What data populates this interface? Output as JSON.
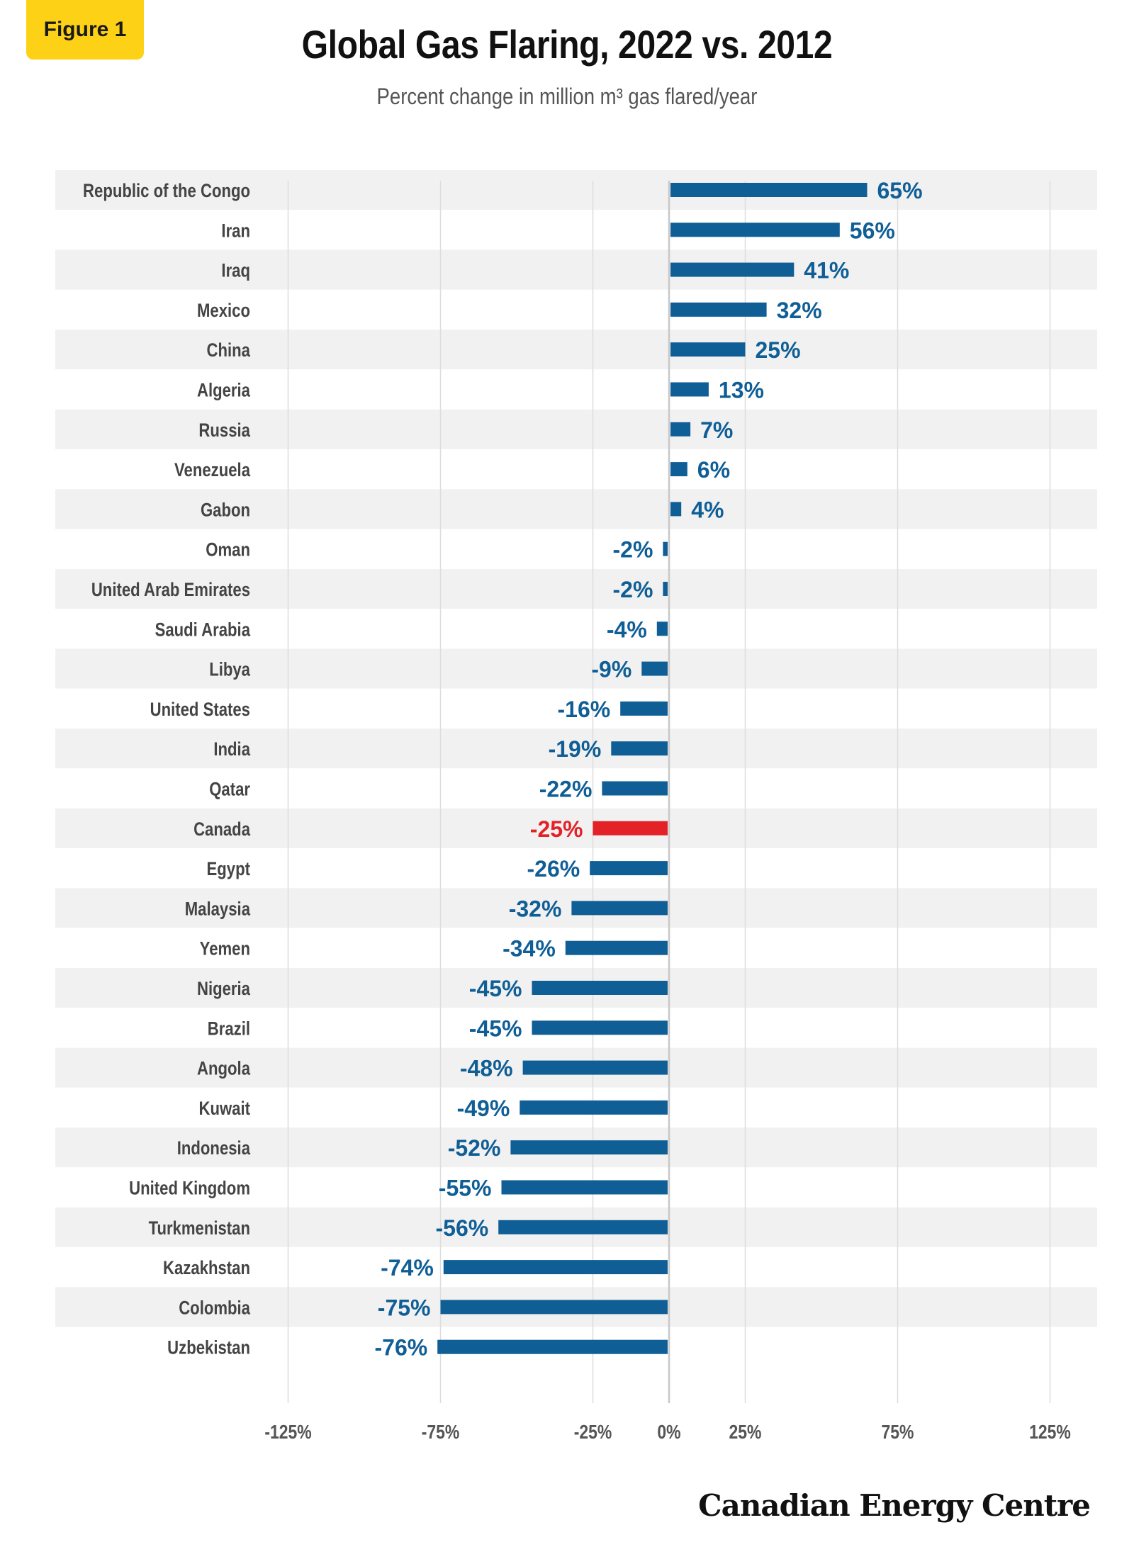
{
  "figure_label": "Figure 1",
  "logo_text": "Canadian Energy Centre",
  "colors": {
    "bar": "#0f5e96",
    "highlight": "#e32227",
    "band": "#f1f1f1",
    "grid": "#dddddd"
  },
  "chart_data": {
    "type": "bar",
    "orientation": "horizontal",
    "title": "Global Gas Flaring, 2022 vs. 2012",
    "subtitle": "Percent change in million m³ gas flared/year",
    "xlim": [
      -125,
      125
    ],
    "xticks": [
      "-125%",
      "-75%",
      "-25%",
      "0%",
      "25%",
      "75%",
      "125%"
    ],
    "xtick_values": [
      -125,
      -75,
      -25,
      0,
      25,
      75,
      125
    ],
    "grid": true,
    "highlight": "Canada",
    "categories": [
      "Republic of the Congo",
      "Iran",
      "Iraq",
      "Mexico",
      "China",
      "Algeria",
      "Russia",
      "Venezuela",
      "Gabon",
      "Oman",
      "United Arab Emirates",
      "Saudi Arabia",
      "Libya",
      "United States",
      "India",
      "Qatar",
      "Canada",
      "Egypt",
      "Malaysia",
      "Yemen",
      "Nigeria",
      "Brazil",
      "Angola",
      "Kuwait",
      "Indonesia",
      "United Kingdom",
      "Turkmenistan",
      "Kazakhstan",
      "Colombia",
      "Uzbekistan"
    ],
    "values": [
      65,
      56,
      41,
      32,
      25,
      13,
      7,
      6,
      4,
      -2,
      -2,
      -4,
      -9,
      -16,
      -19,
      -22,
      -25,
      -26,
      -32,
      -34,
      -45,
      -45,
      -48,
      -49,
      -52,
      -55,
      -56,
      -74,
      -75,
      -76
    ],
    "labels": [
      "65%",
      "56%",
      "41%",
      "32%",
      "25%",
      "13%",
      "7%",
      "6%",
      "4%",
      "-2%",
      "-2%",
      "-4%",
      "-9%",
      "-16%",
      "-19%",
      "-22%",
      "-25%",
      "-26%",
      "-32%",
      "-34%",
      "-45%",
      "-45%",
      "-48%",
      "-49%",
      "-52%",
      "-55%",
      "-56%",
      "-74%",
      "-75%",
      "-76%"
    ]
  }
}
